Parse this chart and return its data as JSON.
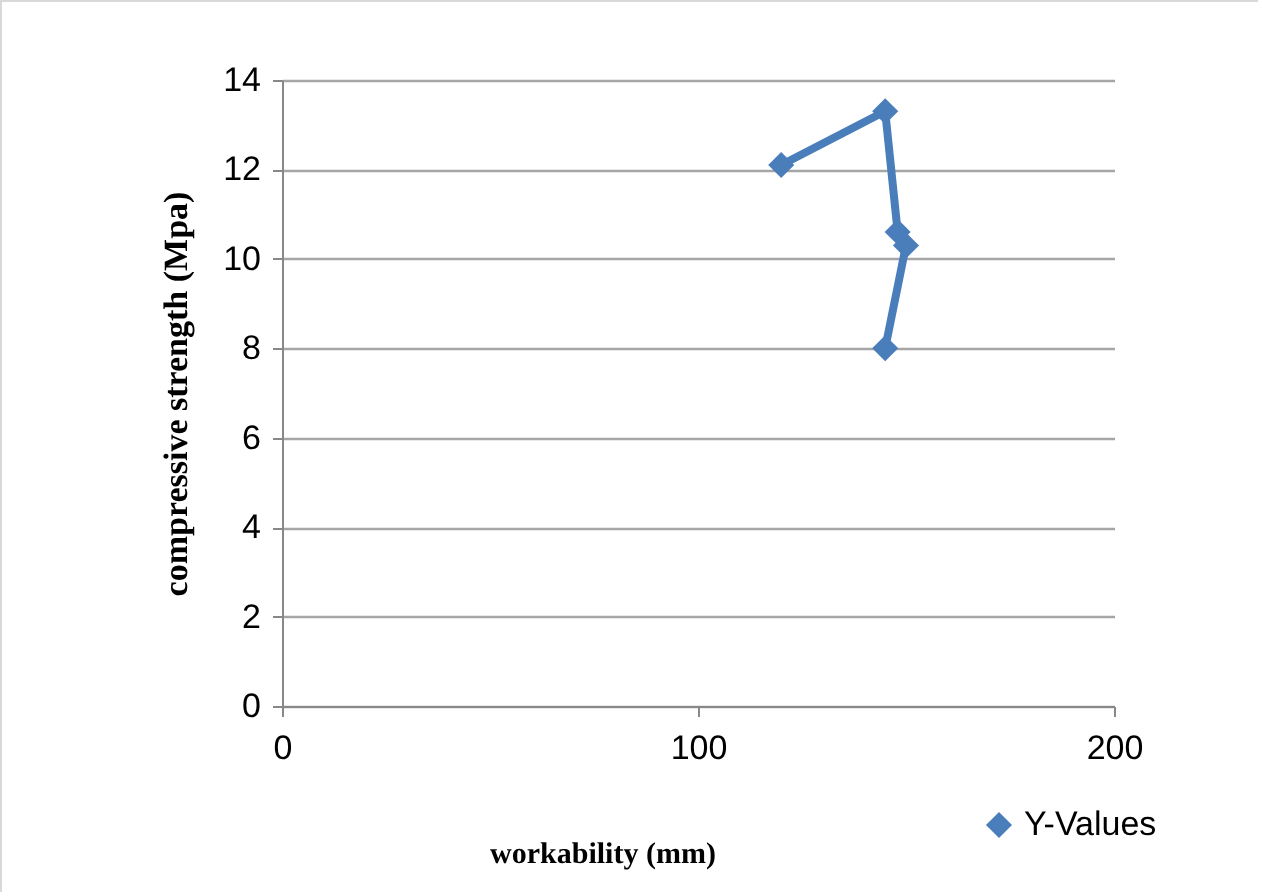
{
  "chart_data": {
    "type": "line",
    "xlabel": "workability (mm)",
    "ylabel": "compressive strength (Mpa)",
    "x": [
      120,
      145,
      148,
      150,
      145
    ],
    "series": [
      {
        "name": "Y-Values",
        "color": "#4a7ebb",
        "values": [
          12.1,
          13.3,
          10.6,
          10.3,
          8.0
        ]
      }
    ],
    "xlim": [
      0,
      200
    ],
    "xticks": [
      0,
      100,
      200
    ],
    "ylim": [
      0,
      14
    ],
    "yticks": [
      0,
      2,
      4,
      6,
      8,
      10,
      12,
      14
    ],
    "grid": "y",
    "legend": "bottom",
    "marker": "diamond",
    "line_style": "solid"
  }
}
